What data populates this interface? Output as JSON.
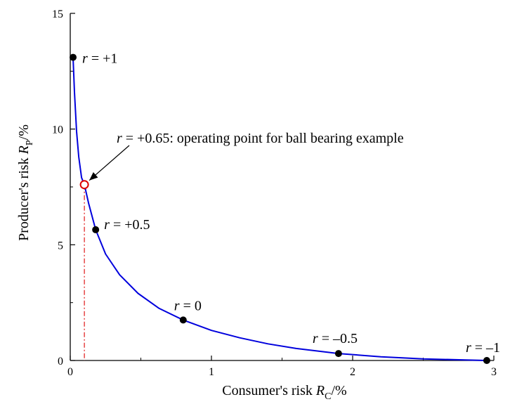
{
  "chart_data": {
    "type": "line",
    "xlabel_main": "Consumer's risk ",
    "xlabel_var": "R",
    "xlabel_sub": "C",
    "xlabel_unit": "/%",
    "ylabel_main": "Producer's risk ",
    "ylabel_var": "R",
    "ylabel_sub": "P",
    "ylabel_unit": "/%",
    "xlim": [
      0,
      3
    ],
    "ylim": [
      0,
      15
    ],
    "x_ticks": [
      0,
      1,
      2,
      3
    ],
    "x_tick_labels": [
      "0",
      "1",
      "2",
      "3"
    ],
    "y_ticks": [
      0,
      5,
      10,
      15
    ],
    "y_tick_labels": [
      "0",
      "5",
      "10",
      "15"
    ],
    "grid": false,
    "curve_color": "#0000dd",
    "curve": {
      "x": [
        0.02,
        0.03,
        0.045,
        0.06,
        0.08,
        0.1,
        0.13,
        0.18,
        0.25,
        0.35,
        0.48,
        0.63,
        0.8,
        1.0,
        1.2,
        1.4,
        1.6,
        1.9,
        2.2,
        2.5,
        2.8,
        2.95
      ],
      "y": [
        13.1,
        11.6,
        9.9,
        8.8,
        7.9,
        7.6,
        6.8,
        5.65,
        4.6,
        3.7,
        2.9,
        2.25,
        1.75,
        1.3,
        0.98,
        0.72,
        0.52,
        0.3,
        0.16,
        0.07,
        0.02,
        0.0
      ]
    },
    "points": [
      {
        "x": 0.02,
        "y": 13.1,
        "label": "= +1",
        "var": "r"
      },
      {
        "x": 0.18,
        "y": 5.65,
        "label": "= +0.5",
        "var": "r"
      },
      {
        "x": 0.8,
        "y": 1.75,
        "label": "= 0",
        "var": "r"
      },
      {
        "x": 1.9,
        "y": 0.3,
        "label": "= –0.5",
        "var": "r"
      },
      {
        "x": 2.95,
        "y": 0.0,
        "label": "= –1",
        "var": "r"
      }
    ],
    "operating_point": {
      "x": 0.1,
      "y": 7.6,
      "var": "r",
      "label": "= +0.65: operating point for ball bearing example",
      "color": "#dd0000"
    }
  }
}
